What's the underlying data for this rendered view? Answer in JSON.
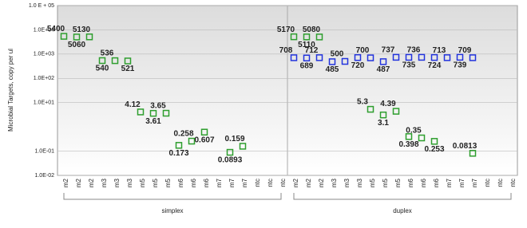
{
  "chart_data": {
    "type": "scatter",
    "log_y": true,
    "grid": true,
    "y_label": "Microbial Targets, copy per ul",
    "ylim": [
      0.01,
      100000
    ],
    "yticks": [
      {
        "value": 100000,
        "label": "1.0 E + 05"
      },
      {
        "value": 10000,
        "label": "1.0E+04"
      },
      {
        "value": 1000,
        "label": "1.0E+03"
      },
      {
        "value": 100,
        "label": "1.0E+02"
      },
      {
        "value": 10,
        "label": "1.0E+01"
      },
      {
        "value": 0.1,
        "label": "1.0E-01"
      },
      {
        "value": 0.01,
        "label": "1.0E-02"
      }
    ],
    "groups": [
      "simplex",
      "duplex"
    ],
    "categories": [
      "m2",
      "m2",
      "m2",
      "m3",
      "m3",
      "m3",
      "m5",
      "m5",
      "m5",
      "m6",
      "m6",
      "m6",
      "m7",
      "m7",
      "m7",
      "ntc",
      "ntc",
      "ntc",
      "m2",
      "m2",
      "m2",
      "m3",
      "m3",
      "m3",
      "m5",
      "m5",
      "m5",
      "m6",
      "m6",
      "m6",
      "m7",
      "m7",
      "m7",
      "ntc",
      "ntc",
      "ntc"
    ],
    "series": [
      {
        "color": "#2e9e2e",
        "values": [
          5400,
          5060,
          5130,
          540,
          536,
          521,
          4.12,
          3.61,
          3.65,
          0.173,
          0.258,
          0.607,
          null,
          0.0893,
          0.159,
          null,
          null,
          null,
          5170,
          5110,
          5080,
          null,
          null,
          null,
          5.3,
          3.1,
          4.39,
          0.398,
          0.35,
          0.253,
          null,
          null,
          0.0813,
          null,
          null,
          null
        ]
      },
      {
        "color": "#2233dd",
        "values": [
          null,
          null,
          null,
          null,
          null,
          null,
          null,
          null,
          null,
          null,
          null,
          null,
          null,
          null,
          null,
          null,
          null,
          null,
          708,
          689,
          712,
          485,
          500,
          720,
          700,
          487,
          737,
          735,
          736,
          724,
          713,
          739,
          709,
          null,
          null,
          null
        ]
      }
    ]
  }
}
